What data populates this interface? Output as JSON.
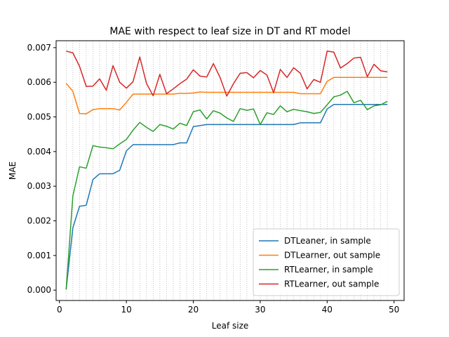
{
  "chart_data": {
    "type": "line",
    "title": "MAE with respect to leaf size in DT and RT model",
    "xlabel": "Leaf size",
    "ylabel": "MAE",
    "xlim": [
      -0.5,
      51.5
    ],
    "ylim": [
      -0.0003,
      0.0072
    ],
    "xticks": [
      0,
      10,
      20,
      30,
      40,
      50
    ],
    "xtick_labels": [
      "0",
      "10",
      "20",
      "30",
      "40",
      "50"
    ],
    "yticks": [
      0.0,
      0.001,
      0.002,
      0.003,
      0.004,
      0.005,
      0.006,
      0.007
    ],
    "ytick_labels": [
      "0.000",
      "0.001",
      "0.002",
      "0.003",
      "0.004",
      "0.005",
      "0.006",
      "0.007"
    ],
    "grid": "vertical dotted at each integer leaf size",
    "legend_position": "lower-right",
    "x": [
      1,
      2,
      3,
      4,
      5,
      6,
      7,
      8,
      9,
      10,
      11,
      12,
      13,
      14,
      15,
      16,
      17,
      18,
      19,
      20,
      21,
      22,
      23,
      24,
      25,
      26,
      27,
      28,
      29,
      30,
      31,
      32,
      33,
      34,
      35,
      36,
      37,
      38,
      39,
      40,
      41,
      42,
      43,
      44,
      45,
      46,
      47,
      48,
      49
    ],
    "series": [
      {
        "name": "DTLeaner, in sample",
        "color": "#1f77b4",
        "values": [
          2e-05,
          0.0018,
          0.00242,
          0.00245,
          0.00319,
          0.00336,
          0.00336,
          0.00336,
          0.00346,
          0.00402,
          0.0042,
          0.0042,
          0.0042,
          0.0042,
          0.0042,
          0.0042,
          0.0042,
          0.00425,
          0.00425,
          0.00472,
          0.00475,
          0.00478,
          0.00478,
          0.00478,
          0.00478,
          0.00478,
          0.00478,
          0.00478,
          0.00478,
          0.00478,
          0.00478,
          0.00478,
          0.00478,
          0.00478,
          0.00478,
          0.00483,
          0.00483,
          0.00483,
          0.00483,
          0.00523,
          0.00536,
          0.00536,
          0.00536,
          0.00536,
          0.00536,
          0.00536,
          0.00536,
          0.00536,
          0.00536
        ]
      },
      {
        "name": "DTLearner, out sample",
        "color": "#ff7f0e",
        "values": [
          0.00597,
          0.00574,
          0.0051,
          0.00509,
          0.00521,
          0.00524,
          0.00524,
          0.00524,
          0.0052,
          0.00542,
          0.00566,
          0.00566,
          0.00566,
          0.00566,
          0.00566,
          0.00566,
          0.00566,
          0.00568,
          0.00568,
          0.00569,
          0.00572,
          0.00571,
          0.00571,
          0.00571,
          0.00571,
          0.00571,
          0.00571,
          0.00571,
          0.00571,
          0.00571,
          0.00571,
          0.00571,
          0.00571,
          0.00571,
          0.00571,
          0.00567,
          0.00567,
          0.00567,
          0.00567,
          0.00603,
          0.00614,
          0.00614,
          0.00614,
          0.00614,
          0.00614,
          0.00614,
          0.00614,
          0.00614,
          0.00614
        ]
      },
      {
        "name": "RTLearner, in sample",
        "color": "#2ca02c",
        "values": [
          2e-05,
          0.00272,
          0.00356,
          0.00352,
          0.00417,
          0.00413,
          0.00411,
          0.00408,
          0.00422,
          0.00435,
          0.00462,
          0.00484,
          0.0047,
          0.00458,
          0.00478,
          0.00473,
          0.00465,
          0.00482,
          0.00475,
          0.00515,
          0.0052,
          0.00494,
          0.00518,
          0.00511,
          0.00497,
          0.00487,
          0.00524,
          0.00519,
          0.00523,
          0.00478,
          0.00512,
          0.00507,
          0.00532,
          0.00515,
          0.00522,
          0.00518,
          0.00515,
          0.0051,
          0.00513,
          0.00535,
          0.00558,
          0.00563,
          0.00574,
          0.00541,
          0.00548,
          0.00521,
          0.00532,
          0.00535,
          0.00545
        ]
      },
      {
        "name": "RTLearner, out sample",
        "color": "#d62728",
        "values": [
          0.0069,
          0.00685,
          0.00646,
          0.00588,
          0.00589,
          0.0061,
          0.00577,
          0.00648,
          0.006,
          0.00583,
          0.00602,
          0.00673,
          0.00597,
          0.00561,
          0.00623,
          0.00567,
          0.00581,
          0.00596,
          0.00609,
          0.00636,
          0.00618,
          0.00615,
          0.00654,
          0.00614,
          0.0056,
          0.00596,
          0.00626,
          0.00628,
          0.00613,
          0.00634,
          0.00621,
          0.0057,
          0.00637,
          0.00614,
          0.00642,
          0.00626,
          0.00581,
          0.00608,
          0.006,
          0.0069,
          0.00687,
          0.00641,
          0.00654,
          0.0067,
          0.00672,
          0.00616,
          0.00652,
          0.00633,
          0.0063
        ]
      }
    ]
  }
}
